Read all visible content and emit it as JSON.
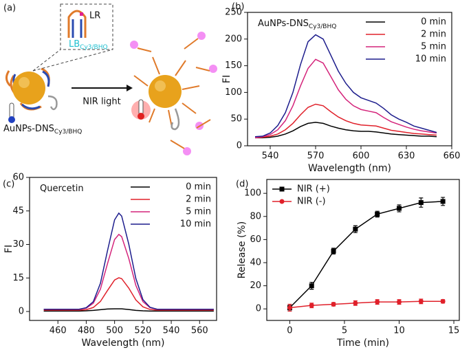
{
  "diagram": {
    "panel_label": "(a)",
    "hairpin_top": "LR",
    "hairpin_bottom": "LB",
    "hairpin_bottom_sub": "Cy3/BHQ",
    "arrow_label": "NIR light",
    "particle": "AuNPs-DNS",
    "particle_sub": "Cy3/BHQ"
  },
  "chart_data": [
    {
      "type": "line",
      "panel_label": "(b)",
      "title": "AuNPs-DNS",
      "title_sub": "Cy3/BHQ",
      "xlabel": "Wavelength (nm)",
      "ylabel": "FI",
      "x": [
        530,
        535,
        540,
        545,
        550,
        555,
        560,
        565,
        570,
        575,
        580,
        585,
        590,
        595,
        600,
        605,
        610,
        615,
        620,
        625,
        630,
        635,
        640,
        645,
        650
      ],
      "series": [
        {
          "name": "0 min",
          "color": "#000000",
          "values": [
            15,
            15,
            16,
            18,
            22,
            28,
            36,
            42,
            44,
            42,
            37,
            33,
            30,
            28,
            27,
            27,
            26,
            24,
            22,
            21,
            20,
            19,
            18,
            18,
            17
          ]
        },
        {
          "name": "2 min",
          "color": "#e0202a",
          "values": [
            15,
            16,
            18,
            22,
            30,
            42,
            58,
            72,
            78,
            75,
            64,
            54,
            47,
            42,
            39,
            38,
            37,
            33,
            29,
            27,
            25,
            23,
            22,
            21,
            20
          ]
        },
        {
          "name": "5 min",
          "color": "#d4237a",
          "values": [
            15,
            17,
            21,
            30,
            47,
            75,
            112,
            145,
            162,
            155,
            130,
            105,
            87,
            75,
            68,
            65,
            62,
            53,
            45,
            40,
            35,
            31,
            28,
            26,
            24
          ]
        },
        {
          "name": "10 min",
          "color": "#1c1c8c",
          "values": [
            17,
            18,
            24,
            38,
            62,
            100,
            152,
            195,
            208,
            200,
            170,
            140,
            117,
            100,
            90,
            85,
            80,
            70,
            58,
            50,
            44,
            37,
            33,
            29,
            25
          ]
        }
      ],
      "xlim": [
        525,
        660
      ],
      "ylim": [
        0,
        250
      ],
      "xticks": [
        540,
        570,
        600,
        630,
        660
      ],
      "yticks": [
        0,
        50,
        100,
        150,
        200,
        250
      ],
      "legend": "upper right"
    },
    {
      "type": "line",
      "panel_label": "(c)",
      "title": "Quercetin",
      "xlabel": "Wavelength (nm)",
      "ylabel": "FI",
      "x": [
        450,
        455,
        460,
        465,
        470,
        475,
        480,
        485,
        490,
        495,
        500,
        503,
        505,
        510,
        515,
        520,
        525,
        530,
        535,
        540,
        545,
        550,
        555,
        560,
        565,
        570
      ],
      "series": [
        {
          "name": "0 min",
          "color": "#000000",
          "values": [
            0.2,
            0.2,
            0.2,
            0.2,
            0.2,
            0.2,
            0.3,
            0.5,
            0.8,
            1.1,
            1.2,
            1.2,
            1.2,
            0.9,
            0.5,
            0.3,
            0.2,
            0.2,
            0.2,
            0.2,
            0.2,
            0.2,
            0.2,
            0.2,
            0.2,
            0.2
          ]
        },
        {
          "name": "2 min",
          "color": "#e0202a",
          "values": [
            0.6,
            0.6,
            0.6,
            0.6,
            0.6,
            0.6,
            0.8,
            1.8,
            4.5,
            9.4,
            14.1,
            15.1,
            14.7,
            10.5,
            5.2,
            2.1,
            0.9,
            0.6,
            0.6,
            0.6,
            0.6,
            0.6,
            0.6,
            0.6,
            0.6,
            0.6
          ]
        },
        {
          "name": "5 min",
          "color": "#d4237a",
          "values": [
            1,
            1,
            1,
            1,
            1,
            1,
            1.5,
            3.7,
            10,
            21.4,
            32.2,
            34.5,
            33.5,
            23.8,
            11.7,
            4.4,
            1.7,
            1,
            1,
            1,
            1,
            1,
            1,
            1,
            1,
            1
          ]
        },
        {
          "name": "10 min",
          "color": "#1c1c8c",
          "values": [
            1,
            1,
            1,
            1,
            1,
            1,
            1.7,
            4.4,
            12.6,
            27.2,
            41,
            44,
            42.7,
            30.2,
            14.8,
            5.3,
            1.9,
            1,
            1,
            1,
            1,
            1,
            1,
            1,
            1,
            1
          ]
        }
      ],
      "xlim": [
        440,
        572
      ],
      "ylim": [
        -4,
        60
      ],
      "xticks": [
        460,
        480,
        500,
        520,
        540,
        560
      ],
      "yticks": [
        0,
        15,
        30,
        45,
        60
      ],
      "legend": "upper right"
    },
    {
      "type": "errorline",
      "panel_label": "(d)",
      "xlabel": "Time (min)",
      "ylabel": "Release (%)",
      "x": [
        0,
        2,
        4,
        6,
        8,
        10,
        12,
        14
      ],
      "series": [
        {
          "name": "NIR (+)",
          "color": "#000000",
          "marker": "square",
          "values": [
            1,
            20,
            50,
            69,
            82,
            87,
            92,
            93
          ],
          "errors": [
            2,
            3,
            2.5,
            3,
            2.5,
            3,
            4,
            3.5
          ]
        },
        {
          "name": "NIR (-)",
          "color": "#e0202a",
          "marker": "circle",
          "values": [
            1,
            3,
            4,
            5,
            6,
            6,
            6.5,
            6.5
          ],
          "errors": [
            3,
            2,
            1.5,
            2,
            2,
            2,
            2,
            1.5
          ]
        }
      ],
      "xlim": [
        -2.1,
        15.5
      ],
      "ylim": [
        -10,
        112
      ],
      "xticks": [
        0,
        5,
        10,
        15
      ],
      "yticks": [
        0,
        20,
        40,
        60,
        80,
        100
      ],
      "legend": "upper left"
    }
  ]
}
